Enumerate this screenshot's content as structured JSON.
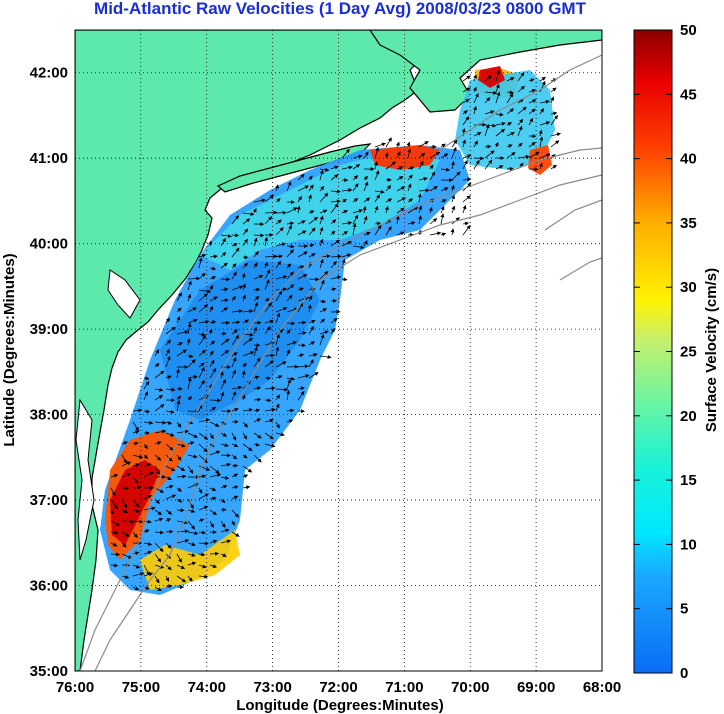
{
  "title": "Mid-Atlantic Raw Velocities (1 Day Avg) 2008/03/23 0800 GMT",
  "map": {
    "xlabel": "Longitude (Degrees:Minutes)",
    "ylabel": "Latitude (Degrees:Minutes)",
    "lon_ticks": [
      "76:00",
      "75:00",
      "74:00",
      "73:00",
      "72:00",
      "71:00",
      "70:00",
      "69:00",
      "68:00"
    ],
    "lat_ticks": [
      "35:00",
      "36:00",
      "37:00",
      "38:00",
      "39:00",
      "40:00",
      "41:00",
      "42:00"
    ],
    "lon_range": [
      -76,
      -68
    ],
    "lat_range": [
      35,
      42.5
    ],
    "land_color": "#5de8ac",
    "grid": "dotted"
  },
  "colorbar": {
    "label": "Surface Velocity (cm/s)",
    "ticks": [
      "0",
      "5",
      "10",
      "15",
      "20",
      "25",
      "30",
      "35",
      "40",
      "45",
      "50"
    ],
    "range": [
      0,
      50
    ],
    "colormap": "jet"
  },
  "chart_data": {
    "type": "heatmap",
    "title": "Mid-Atlantic Raw Velocities (1 Day Avg) 2008/03/23 0800 GMT",
    "xlabel": "Longitude (Degrees:Minutes)",
    "ylabel": "Latitude (Degrees:Minutes)",
    "colorbar_label": "Surface Velocity (cm/s)",
    "xlim": [
      -76,
      -68
    ],
    "ylim": [
      35,
      42.5
    ],
    "clim": [
      0,
      50
    ]
  }
}
